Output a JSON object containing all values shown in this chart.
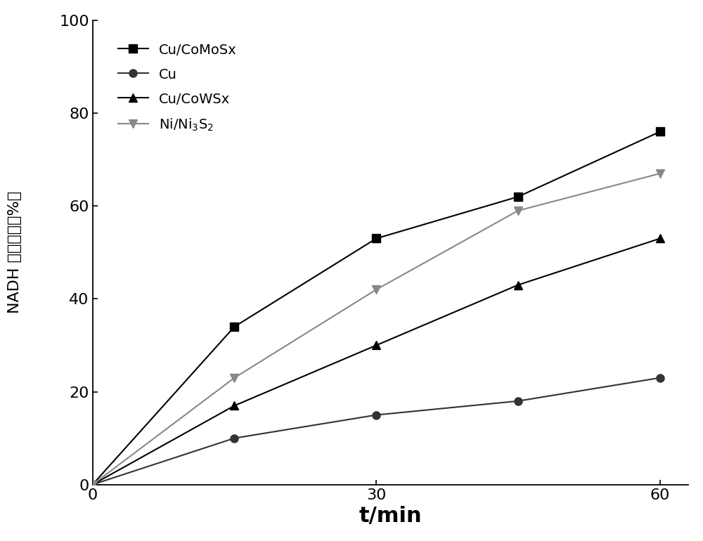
{
  "series": [
    {
      "label": "Cu/CoMoSx",
      "x": [
        0,
        15,
        30,
        45,
        60
      ],
      "y": [
        0,
        34,
        53,
        62,
        76
      ],
      "color": "#000000",
      "marker": "s",
      "marker_size": 8,
      "linewidth": 1.5,
      "linestyle": "-"
    },
    {
      "label": "Cu",
      "x": [
        0,
        15,
        30,
        45,
        60
      ],
      "y": [
        0,
        10,
        15,
        18,
        23
      ],
      "color": "#333333",
      "marker": "o",
      "marker_size": 8,
      "linewidth": 1.5,
      "linestyle": "-"
    },
    {
      "label": "Cu/CoWSx",
      "x": [
        0,
        15,
        30,
        45,
        60
      ],
      "y": [
        0,
        17,
        30,
        43,
        53
      ],
      "color": "#000000",
      "marker": "^",
      "marker_size": 8,
      "linewidth": 1.5,
      "linestyle": "-"
    },
    {
      "label": "Ni/Ni$_3$S$_2$",
      "x": [
        0,
        15,
        30,
        45,
        60
      ],
      "y": [
        0,
        23,
        42,
        59,
        67
      ],
      "color": "#888888",
      "marker": "v",
      "marker_size": 8,
      "linewidth": 1.5,
      "linestyle": "-"
    }
  ],
  "xlabel": "t/min",
  "ylabel_top": "（%）",
  "ylabel_mid": "再生产率",
  "ylabel_bot": "NADH",
  "xlim": [
    0,
    63
  ],
  "ylim": [
    0,
    100
  ],
  "xticks": [
    0,
    30,
    60
  ],
  "yticks": [
    0,
    20,
    40,
    60,
    80,
    100
  ],
  "xtick_labels": [
    "0",
    "30",
    "60"
  ],
  "ytick_labels": [
    "0",
    "20",
    "40",
    "60",
    "80",
    "100"
  ],
  "legend_loc": "upper left",
  "xlabel_fontsize": 22,
  "ylabel_fontsize": 16,
  "tick_fontsize": 16,
  "legend_fontsize": 14,
  "figure_width": 10.0,
  "figure_height": 7.7
}
